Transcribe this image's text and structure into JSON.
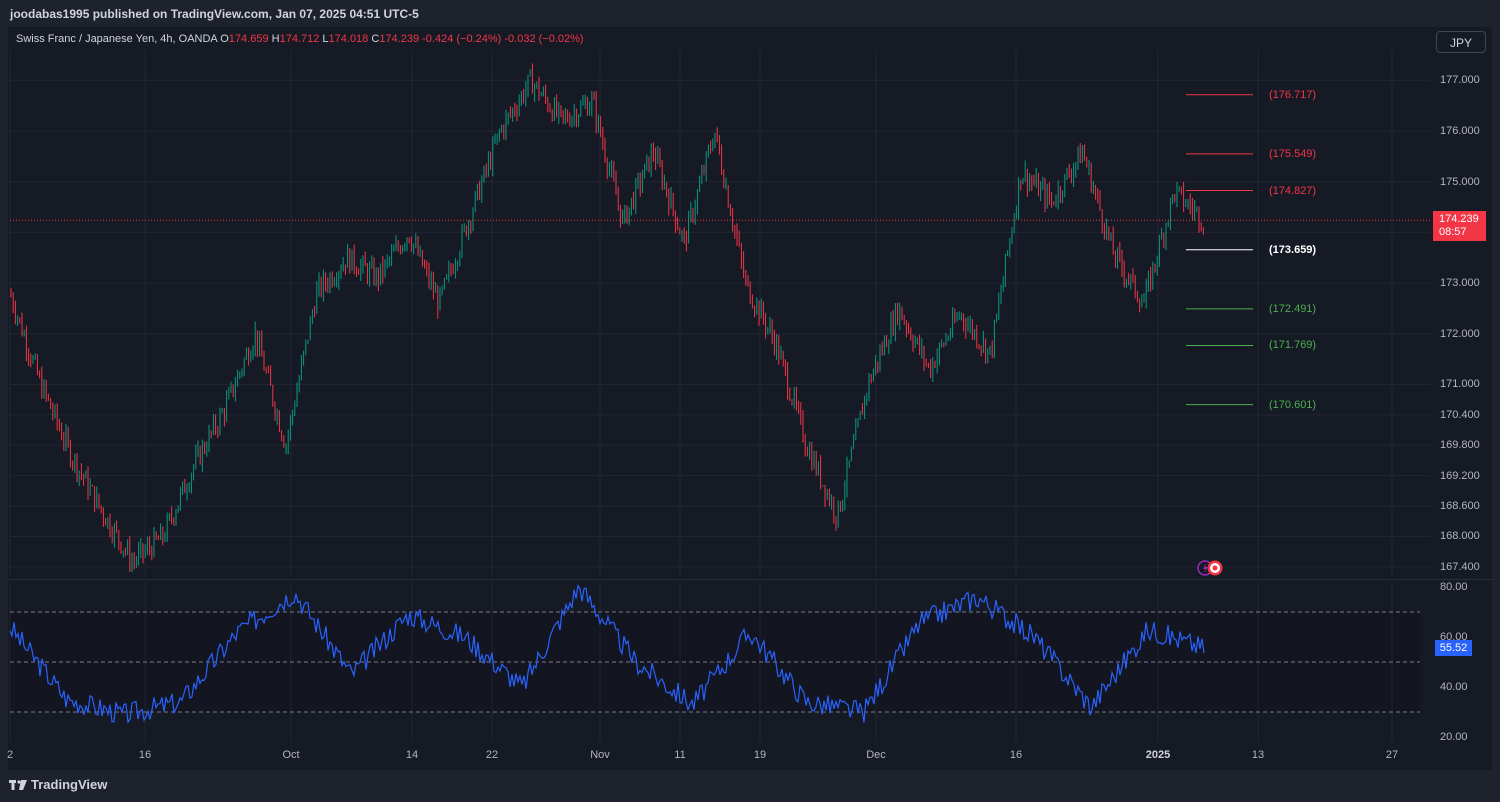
{
  "header": {
    "published": "joodabas1995 published on TradingView.com, Jan 07, 2025 04:51 UTC-5"
  },
  "legend": {
    "symbol": "Swiss Franc / Japanese Yen, 4h, OANDA",
    "o_label": "O",
    "o_value": "174.659",
    "h_label": "H",
    "h_value": "174.712",
    "l_label": "L",
    "l_value": "174.018",
    "c_label": "C",
    "c_value": "174.239",
    "change": "-0.424 (−0.24%)",
    "change2": "-0.032 (−0.02%)"
  },
  "currency_button": "JPY",
  "current_price": {
    "value": "174.239",
    "countdown": "08:57"
  },
  "rsi_value": "55.52",
  "price_axis": [
    "177.000",
    "176.000",
    "175.000",
    "174.000",
    "173.000",
    "172.000",
    "171.000",
    "170.400",
    "169.800",
    "169.200",
    "168.600",
    "168.000",
    "167.400"
  ],
  "rsi_axis": [
    "80.00",
    "60.00",
    "40.00",
    "20.00"
  ],
  "time_axis": [
    {
      "label": "2",
      "bold": false
    },
    {
      "label": "16",
      "bold": false
    },
    {
      "label": "Oct",
      "bold": false
    },
    {
      "label": "14",
      "bold": false
    },
    {
      "label": "22",
      "bold": false
    },
    {
      "label": "Nov",
      "bold": false
    },
    {
      "label": "11",
      "bold": false
    },
    {
      "label": "19",
      "bold": false
    },
    {
      "label": "Dec",
      "bold": false
    },
    {
      "label": "16",
      "bold": false
    },
    {
      "label": "2025",
      "bold": true
    },
    {
      "label": "13",
      "bold": false
    },
    {
      "label": "27",
      "bold": false
    }
  ],
  "levels": [
    {
      "label": "(176.717)",
      "price": 176.717,
      "color": "#f23645"
    },
    {
      "label": "(175.549)",
      "price": 175.549,
      "color": "#f23645"
    },
    {
      "label": "(174.827)",
      "price": 174.827,
      "color": "#f23645"
    },
    {
      "label": "(173.659)",
      "price": 173.659,
      "color": "#ffffff"
    },
    {
      "label": "(172.491)",
      "price": 172.491,
      "color": "#4caf50"
    },
    {
      "label": "(171.769)",
      "price": 171.769,
      "color": "#4caf50"
    },
    {
      "label": "(170.601)",
      "price": 170.601,
      "color": "#4caf50"
    }
  ],
  "colors": {
    "up": "#089981",
    "down": "#f23645",
    "rsi": "#2962ff",
    "rsi_band": "#7e57c2"
  },
  "brand": "TradingView",
  "chart_data": {
    "type": "line",
    "price_trend": [
      {
        "t": "2",
        "p": 172.8
      },
      {
        "t": "3",
        "p": 171.0
      },
      {
        "t": "5",
        "p": 169.6
      },
      {
        "t": "8",
        "p": 168.5
      },
      {
        "t": "12",
        "p": 167.5
      },
      {
        "t": "16",
        "p": 168.0
      },
      {
        "t": "18",
        "p": 169.4
      },
      {
        "t": "23",
        "p": 170.5
      },
      {
        "t": "27",
        "p": 172.0
      },
      {
        "t": "30",
        "p": 169.8
      },
      {
        "t": "Oct 2",
        "p": 172.8
      },
      {
        "t": "Oct 4",
        "p": 173.5
      },
      {
        "t": "Oct 9",
        "p": 173.1
      },
      {
        "t": "Oct 14",
        "p": 174.0
      },
      {
        "t": "Oct 18",
        "p": 172.6
      },
      {
        "t": "Oct 21",
        "p": 174.3
      },
      {
        "t": "Oct 24",
        "p": 176.0
      },
      {
        "t": "Oct 28",
        "p": 177.0
      },
      {
        "t": "Oct 31",
        "p": 176.2
      },
      {
        "t": "Nov 5",
        "p": 176.6
      },
      {
        "t": "Nov 8",
        "p": 174.2
      },
      {
        "t": "Nov 12",
        "p": 175.6
      },
      {
        "t": "Nov 15",
        "p": 173.8
      },
      {
        "t": "Nov 19",
        "p": 176.0
      },
      {
        "t": "Nov 22",
        "p": 173.0
      },
      {
        "t": "Nov 26",
        "p": 171.8
      },
      {
        "t": "Nov 29",
        "p": 169.8
      },
      {
        "t": "Dec 3",
        "p": 168.4
      },
      {
        "t": "Dec 6",
        "p": 171.0
      },
      {
        "t": "Dec 11",
        "p": 172.5
      },
      {
        "t": "Dec 13",
        "p": 171.3
      },
      {
        "t": "Dec 16",
        "p": 172.4
      },
      {
        "t": "Dec 18",
        "p": 171.6
      },
      {
        "t": "Dec 19",
        "p": 175.2
      },
      {
        "t": "Dec 23",
        "p": 174.6
      },
      {
        "t": "Dec 27",
        "p": 175.6
      },
      {
        "t": "Dec 30",
        "p": 173.6
      },
      {
        "t": "Jan 2",
        "p": 172.6
      },
      {
        "t": "Jan 6",
        "p": 174.8
      },
      {
        "t": "Jan 7",
        "p": 174.239
      }
    ],
    "rsi_trend": [
      {
        "t": "2",
        "v": 64
      },
      {
        "t": "5",
        "v": 35
      },
      {
        "t": "12",
        "v": 29
      },
      {
        "t": "16",
        "v": 34
      },
      {
        "t": "18",
        "v": 62
      },
      {
        "t": "27",
        "v": 78
      },
      {
        "t": "30",
        "v": 45
      },
      {
        "t": "Oct 4",
        "v": 69
      },
      {
        "t": "Oct 14",
        "v": 60
      },
      {
        "t": "Oct 18",
        "v": 40
      },
      {
        "t": "Oct 24",
        "v": 80
      },
      {
        "t": "Nov 1",
        "v": 50
      },
      {
        "t": "Nov 8",
        "v": 33
      },
      {
        "t": "Nov 19",
        "v": 62
      },
      {
        "t": "Nov 26",
        "v": 34
      },
      {
        "t": "Dec 3",
        "v": 30
      },
      {
        "t": "Dec 11",
        "v": 66
      },
      {
        "t": "Dec 19",
        "v": 76
      },
      {
        "t": "Dec 30",
        "v": 60
      },
      {
        "t": "Jan 2",
        "v": 32
      },
      {
        "t": "Jan 6",
        "v": 63
      },
      {
        "t": "Jan 7",
        "v": 55.52
      }
    ],
    "price_range": [
      167.2,
      177.6
    ],
    "rsi_range": [
      20,
      80
    ],
    "rsi_bands": [
      70,
      50,
      30
    ]
  }
}
